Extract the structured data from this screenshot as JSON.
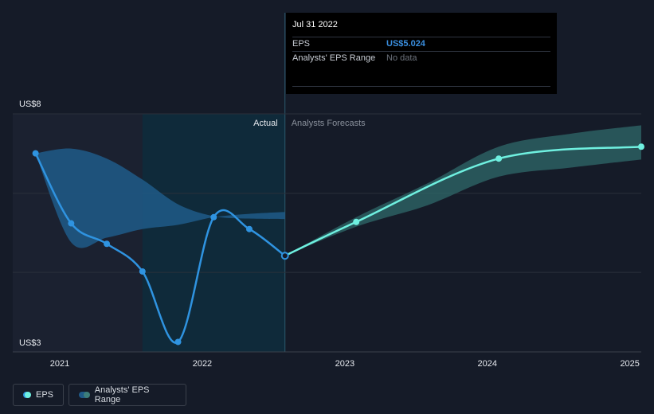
{
  "tooltip": {
    "date": "Jul 31 2022",
    "eps_label": "EPS",
    "eps_value": "US$5.024",
    "range_label": "Analysts' EPS Range",
    "range_value": "No data"
  },
  "legend": {
    "eps": "EPS",
    "range": "Analysts' EPS Range"
  },
  "colors": {
    "actual_line": "#2f93e0",
    "forecast_line": "#6ff0e0",
    "actual_band": "#1f5a88",
    "forecast_band": "#2f6a6a",
    "past_shade": "#1b2130",
    "highlight_shade": "#0f2a3a",
    "background": "#151b28"
  },
  "chart_data": {
    "type": "line",
    "ylim": [
      3,
      8
    ],
    "xlim": [
      2020.67,
      2025.08
    ],
    "y_ticks": [
      {
        "value": 8,
        "label": "US$8"
      },
      {
        "value": 3,
        "label": "US$3"
      }
    ],
    "x_ticks": [
      {
        "value": 2021,
        "label": "2021"
      },
      {
        "value": 2022,
        "label": "2022"
      },
      {
        "value": 2023,
        "label": "2023"
      },
      {
        "value": 2024,
        "label": "2024"
      },
      {
        "value": 2025,
        "label": "2025"
      }
    ],
    "region_labels": {
      "actual": "Actual",
      "forecast": "Analysts Forecasts"
    },
    "divider_x": 2022.58,
    "highlight_start_x": 2021.58,
    "series": [
      {
        "name": "EPS",
        "points": [
          {
            "x": 2020.83,
            "y": 7.17
          },
          {
            "x": 2021.08,
            "y": 5.7
          },
          {
            "x": 2021.33,
            "y": 5.27
          },
          {
            "x": 2021.58,
            "y": 4.69
          },
          {
            "x": 2021.83,
            "y": 3.21
          },
          {
            "x": 2022.08,
            "y": 5.83
          },
          {
            "x": 2022.33,
            "y": 5.58
          },
          {
            "x": 2022.58,
            "y": 5.02
          }
        ]
      },
      {
        "name": "EPS",
        "points": [
          {
            "x": 2022.58,
            "y": 5.02
          },
          {
            "x": 2023.08,
            "y": 5.73
          },
          {
            "x": 2024.08,
            "y": 7.06
          },
          {
            "x": 2025.08,
            "y": 7.31
          }
        ]
      }
    ],
    "range_bands": [
      {
        "name": "Analysts' EPS Range",
        "upper": [
          {
            "x": 2020.83,
            "y": 7.17
          },
          {
            "x": 2021.08,
            "y": 7.27
          },
          {
            "x": 2021.33,
            "y": 7.06
          },
          {
            "x": 2021.58,
            "y": 6.62
          },
          {
            "x": 2021.83,
            "y": 6.1
          },
          {
            "x": 2022.08,
            "y": 5.85
          },
          {
            "x": 2022.33,
            "y": 5.8
          },
          {
            "x": 2022.58,
            "y": 5.79
          }
        ],
        "lower": [
          {
            "x": 2020.83,
            "y": 7.17
          },
          {
            "x": 2021.08,
            "y": 5.3
          },
          {
            "x": 2021.33,
            "y": 5.4
          },
          {
            "x": 2021.58,
            "y": 5.58
          },
          {
            "x": 2021.83,
            "y": 5.67
          },
          {
            "x": 2022.08,
            "y": 5.83
          },
          {
            "x": 2022.33,
            "y": 5.9
          },
          {
            "x": 2022.58,
            "y": 5.94
          }
        ]
      },
      {
        "name": "Analysts' EPS Range",
        "upper": [
          {
            "x": 2022.58,
            "y": 5.02
          },
          {
            "x": 2023.08,
            "y": 5.83
          },
          {
            "x": 2023.58,
            "y": 6.54
          },
          {
            "x": 2024.08,
            "y": 7.31
          },
          {
            "x": 2024.58,
            "y": 7.58
          },
          {
            "x": 2025.08,
            "y": 7.76
          }
        ],
        "lower": [
          {
            "x": 2022.58,
            "y": 5.02
          },
          {
            "x": 2023.08,
            "y": 5.63
          },
          {
            "x": 2023.58,
            "y": 6.08
          },
          {
            "x": 2024.08,
            "y": 6.68
          },
          {
            "x": 2024.58,
            "y": 6.87
          },
          {
            "x": 2025.08,
            "y": 7.04
          }
        ]
      }
    ]
  }
}
